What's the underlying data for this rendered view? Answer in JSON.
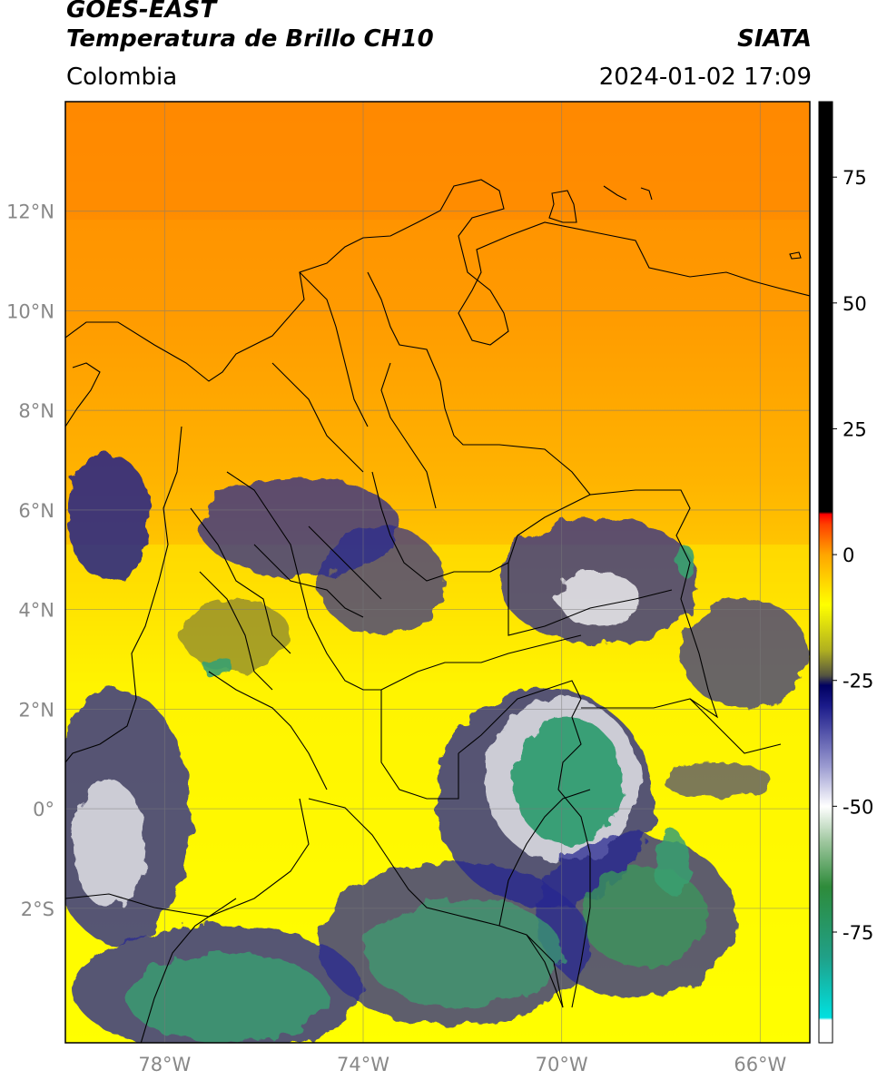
{
  "header": {
    "satellite": "GOES-EAST",
    "product": "Temperatura de Brillo CH10",
    "region": "Colombia",
    "org": "SIATA",
    "datetime": "2024-01-02 17:09"
  },
  "map": {
    "lat_labels": [
      "12°N",
      "10°N",
      "8°N",
      "6°N",
      "4°N",
      "2°N",
      "0°",
      "2°S"
    ],
    "lon_labels": [
      "78°W",
      "74°W",
      "70°W",
      "66°W"
    ],
    "lat_values": [
      12,
      10,
      8,
      6,
      4,
      2,
      0,
      -2
    ],
    "lon_values": [
      -78,
      -74,
      -70,
      -66
    ],
    "lat_range": [
      -4.7,
      14.2
    ],
    "lon_range": [
      -80.0,
      -65.0
    ]
  },
  "colorbar": {
    "labels": [
      "75",
      "50",
      "25",
      "0",
      "-25",
      "-50",
      "-75"
    ],
    "values": [
      75,
      50,
      25,
      0,
      -25,
      -50,
      -75
    ],
    "range": [
      -97,
      90
    ],
    "stops": [
      {
        "v": -97,
        "c": "#ffffff"
      },
      {
        "v": -92.5,
        "c": "#ffffff"
      },
      {
        "v": -92,
        "c": "#00e0e0"
      },
      {
        "v": -80,
        "c": "#20a088"
      },
      {
        "v": -66,
        "c": "#2e8b3a"
      },
      {
        "v": -57,
        "c": "#9fc79f"
      },
      {
        "v": -50,
        "c": "#ffffff"
      },
      {
        "v": -42,
        "c": "#9a9ad0"
      },
      {
        "v": -30,
        "c": "#1a1a8a"
      },
      {
        "v": -26,
        "c": "#000060"
      },
      {
        "v": -24,
        "c": "#555540"
      },
      {
        "v": -19,
        "c": "#b0b020"
      },
      {
        "v": -10,
        "c": "#ffff00"
      },
      {
        "v": 0,
        "c": "#ffa500"
      },
      {
        "v": 6,
        "c": "#ff4000"
      },
      {
        "v": 8,
        "c": "#ff0000"
      },
      {
        "v": 8.5,
        "c": "#000000"
      },
      {
        "v": 90,
        "c": "#000000"
      }
    ]
  }
}
